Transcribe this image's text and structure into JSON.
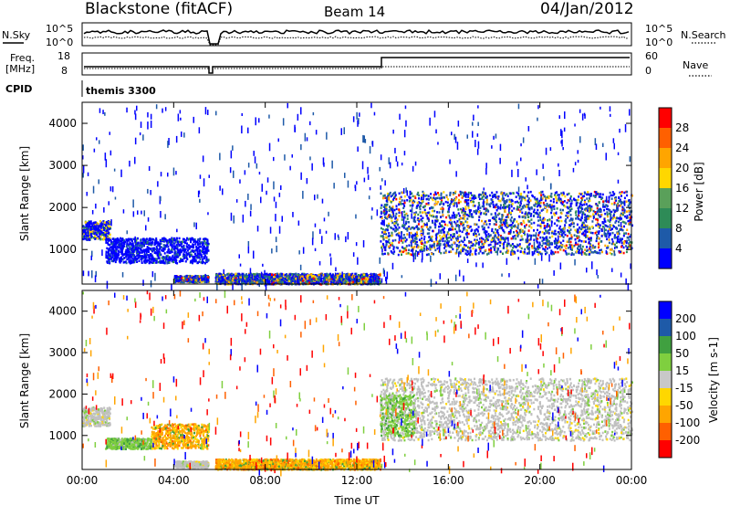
{
  "header": {
    "station": "Blackstone (fitACF)",
    "beam": "Beam 14",
    "date": "04/Jan/2012"
  },
  "top_panels": {
    "nsky_label": "N.Sky",
    "nsearch_label": "N.Search",
    "freq_label_line1": "Freq.",
    "freq_label_line2": "[MHz]",
    "nave_label": "Nave",
    "cpid_label": "CPID",
    "cpid_value": "themis 3300",
    "noise_ticks_left": [
      "10^5",
      "10^0"
    ],
    "noise_ticks_right": [
      "10^5",
      "10^0"
    ],
    "freq_ticks": [
      "18",
      "8"
    ],
    "nave_ticks": [
      "60",
      "0"
    ]
  },
  "colors": {
    "power_scale": [
      "#0000ff",
      "#1e5aa8",
      "#2e8b57",
      "#5aa05a",
      "#ffd700",
      "#ffa500",
      "#ff6000",
      "#ff0000"
    ],
    "velocity_scale": [
      "#ff0000",
      "#ff6000",
      "#ffa500",
      "#ffd700",
      "#c8c8c8",
      "#7fcf3f",
      "#40a040",
      "#1e5aa8",
      "#0000ff"
    ],
    "ground_scatter": "#c0c0c0"
  },
  "chart_data": [
    {
      "type": "heatmap",
      "title": "",
      "xlabel": "",
      "ylabel": "Slant Range [km]",
      "xlim_hours": [
        0,
        24
      ],
      "ylim_km": [
        180,
        4500
      ],
      "x_ticks": [
        "00:00",
        "04:00",
        "08:00",
        "12:00",
        "16:00",
        "20:00",
        "00:00"
      ],
      "y_ticks": [
        "1000",
        "2000",
        "3000",
        "4000"
      ],
      "colorbar_label": "Power [dB]",
      "colorbar_ticks": [
        "4",
        "8",
        "12",
        "16",
        "20",
        "24",
        "28"
      ],
      "data_gap_hours": [
        5.55,
        5.8
      ],
      "scatter_bands": [
        {
          "start_h": 0.0,
          "end_h": 1.2,
          "range_km": [
            1250,
            1700
          ],
          "level": "medium"
        },
        {
          "start_h": 1.0,
          "end_h": 5.5,
          "range_km": [
            700,
            1300
          ],
          "level": "low"
        },
        {
          "start_h": 4.0,
          "end_h": 5.5,
          "range_km": [
            250,
            400
          ],
          "level": "high"
        },
        {
          "start_h": 5.8,
          "end_h": 13.0,
          "range_km": [
            200,
            450
          ],
          "level": "high"
        },
        {
          "start_h": 13.0,
          "end_h": 24.0,
          "range_km": [
            900,
            2400
          ],
          "level": "high"
        }
      ]
    },
    {
      "type": "heatmap",
      "title": "",
      "xlabel": "Time UT",
      "ylabel": "Slant Range [km]",
      "xlim_hours": [
        0,
        24
      ],
      "ylim_km": [
        180,
        4500
      ],
      "x_ticks": [
        "00:00",
        "04:00",
        "08:00",
        "12:00",
        "16:00",
        "20:00",
        "00:00"
      ],
      "y_ticks": [
        "1000",
        "2000",
        "3000",
        "4000"
      ],
      "colorbar_label": "Velocity [m s-1]",
      "colorbar_ticks": [
        "200",
        "100",
        "50",
        "15",
        "-15",
        "-50",
        "-100",
        "-200"
      ],
      "data_gap_hours": [
        5.55,
        5.8
      ],
      "scatter_bands": [
        {
          "start_h": 0.0,
          "end_h": 1.2,
          "range_km": [
            1250,
            1700
          ],
          "level": "ground"
        },
        {
          "start_h": 1.0,
          "end_h": 3.0,
          "range_km": [
            700,
            950
          ],
          "level": "green"
        },
        {
          "start_h": 3.0,
          "end_h": 5.5,
          "range_km": [
            700,
            1300
          ],
          "level": "orange"
        },
        {
          "start_h": 4.0,
          "end_h": 5.5,
          "range_km": [
            250,
            400
          ],
          "level": "ground"
        },
        {
          "start_h": 5.8,
          "end_h": 13.0,
          "range_km": [
            200,
            450
          ],
          "level": "orange"
        },
        {
          "start_h": 13.0,
          "end_h": 24.0,
          "range_km": [
            900,
            2400
          ],
          "level": "ground"
        },
        {
          "start_h": 13.0,
          "end_h": 14.5,
          "range_km": [
            1000,
            2000
          ],
          "level": "green"
        }
      ]
    }
  ]
}
